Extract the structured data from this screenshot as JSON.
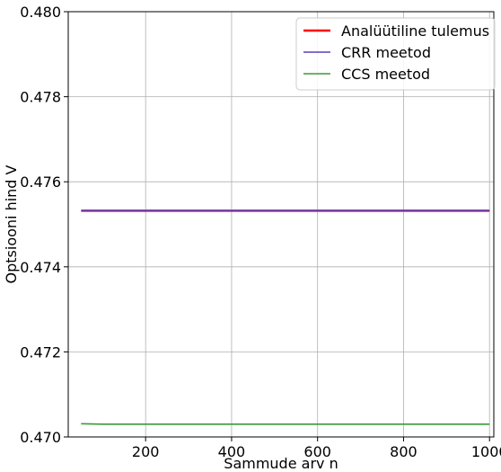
{
  "chart_data": {
    "type": "line",
    "title": "",
    "xlabel": "Sammude arv n",
    "ylabel": "Optsiooni hind V",
    "xlim": [
      20,
      1010
    ],
    "ylim": [
      0.47,
      0.48
    ],
    "x_ticks": [
      200,
      400,
      600,
      800,
      1000
    ],
    "x_tick_labels": [
      "200",
      "400",
      "600",
      "800",
      "1000"
    ],
    "y_ticks": [
      0.47,
      0.472,
      0.474,
      0.476,
      0.478,
      0.48
    ],
    "y_tick_labels": [
      "0.470",
      "0.472",
      "0.474",
      "0.476",
      "0.478",
      "0.480"
    ],
    "grid": true,
    "legend_position": "top-right",
    "series": [
      {
        "name": "Analüütiline tulemus",
        "color": "#ff0000",
        "x": [
          50,
          1000
        ],
        "y": [
          0.47532,
          0.47532
        ]
      },
      {
        "name": "CRR meetod",
        "color": "#5c3db8",
        "x": [
          50,
          1000
        ],
        "y": [
          0.47532,
          0.47532
        ]
      },
      {
        "name": "CCS meetod",
        "color": "#3a9a3a",
        "x": [
          50,
          100,
          200,
          400,
          600,
          800,
          1000
        ],
        "y": [
          0.47031,
          0.4703,
          0.4703,
          0.4703,
          0.4703,
          0.4703,
          0.4703
        ]
      }
    ]
  }
}
